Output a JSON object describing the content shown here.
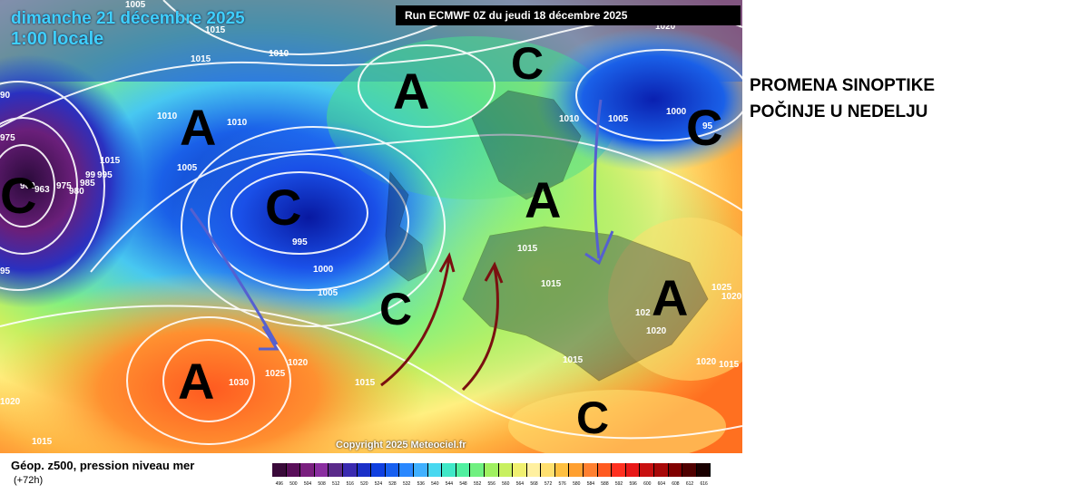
{
  "map": {
    "date_line1": "dimanche 21 décembre 2025",
    "date_line2": "1:00 locale",
    "run": "Run ECMWF 0Z du jeudi 18 décembre 2025",
    "copyright": "Copyright 2025 Meteociel.fr",
    "pressure_labels": [
      "1005",
      "1020",
      "1015",
      "1010",
      "1015",
      "1010",
      "1010",
      "1005",
      "975",
      "960",
      "963",
      "975",
      "985",
      "980",
      "995",
      "99",
      "90",
      "95",
      "1015",
      "995",
      "1000",
      "1005",
      "1020",
      "1025",
      "1030",
      "1015",
      "1020",
      "1015",
      "1010",
      "1005",
      "1000",
      "95",
      "1015",
      "1015",
      "1025",
      "1020",
      "1020",
      "1015",
      "102",
      "1020",
      "1015"
    ],
    "systems": [
      {
        "label": "A",
        "type": "high"
      },
      {
        "label": "A",
        "type": "high"
      },
      {
        "label": "C",
        "type": "low"
      },
      {
        "label": "C",
        "type": "low"
      },
      {
        "label": "C",
        "type": "low"
      },
      {
        "label": "C",
        "type": "low"
      },
      {
        "label": "A",
        "type": "high"
      },
      {
        "label": "A",
        "type": "high"
      },
      {
        "label": "A",
        "type": "high"
      },
      {
        "label": "C",
        "type": "low"
      },
      {
        "label": "C",
        "type": "low"
      }
    ]
  },
  "caption": {
    "line1": "PROMENA SINOPTIKE",
    "line2": "POČINJE U NEDELJU"
  },
  "legend": {
    "title": "Géop. z500, pression niveau mer",
    "subtitle": "(+72h)",
    "ticks": [
      "496",
      "500",
      "504",
      "508",
      "512",
      "516",
      "520",
      "524",
      "528",
      "532",
      "536",
      "540",
      "544",
      "548",
      "552",
      "556",
      "560",
      "564",
      "568",
      "572",
      "576",
      "580",
      "584",
      "588",
      "592",
      "596",
      "600",
      "604",
      "608",
      "612",
      "616"
    ],
    "colors": [
      "#3a0a3a",
      "#5a0f5a",
      "#7a1f7f",
      "#8a2ea0",
      "#5a2a8a",
      "#3a2ab0",
      "#1a30c8",
      "#1040e0",
      "#1860f0",
      "#2a88ff",
      "#40b0ff",
      "#48d8f0",
      "#40e8c8",
      "#50f0a0",
      "#70f080",
      "#a0f060",
      "#c8f060",
      "#f0f070",
      "#fff0a0",
      "#ffe070",
      "#ffc040",
      "#ffa030",
      "#ff8030",
      "#ff5a20",
      "#ff3020",
      "#e81818",
      "#c81010",
      "#a80808",
      "#800000",
      "#500000",
      "#1a0000"
    ]
  }
}
